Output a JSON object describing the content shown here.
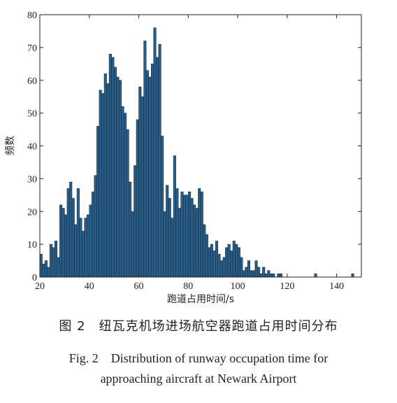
{
  "chart_data": {
    "type": "bar",
    "title": "",
    "xlabel": "跑道占用时间/s",
    "ylabel": "频数",
    "xlim": [
      20,
      150
    ],
    "ylim": [
      0,
      80
    ],
    "xticks": [
      20,
      40,
      60,
      80,
      100,
      120,
      140
    ],
    "yticks": [
      0,
      10,
      20,
      30,
      40,
      50,
      60,
      70,
      80
    ],
    "bar_color": "#2a5d86",
    "bin_width": 1,
    "x": [
      20,
      21,
      22,
      23,
      24,
      25,
      26,
      27,
      28,
      29,
      30,
      31,
      32,
      33,
      34,
      35,
      36,
      37,
      38,
      39,
      40,
      41,
      42,
      43,
      44,
      45,
      46,
      47,
      48,
      49,
      50,
      51,
      52,
      53,
      54,
      55,
      56,
      57,
      58,
      59,
      60,
      61,
      62,
      63,
      64,
      65,
      66,
      67,
      68,
      69,
      70,
      71,
      72,
      73,
      74,
      75,
      76,
      77,
      78,
      79,
      80,
      81,
      82,
      83,
      84,
      85,
      86,
      87,
      88,
      89,
      90,
      91,
      92,
      93,
      94,
      95,
      96,
      97,
      98,
      99,
      100,
      101,
      102,
      103,
      104,
      105,
      106,
      107,
      108,
      109,
      110,
      111,
      112,
      113,
      114,
      115,
      116,
      117,
      118,
      119,
      120,
      121,
      122,
      123,
      124,
      125,
      126,
      127,
      128,
      129,
      130,
      131,
      132,
      133,
      134,
      135,
      136,
      137,
      138,
      139,
      140,
      141,
      142,
      143,
      144,
      145,
      146
    ],
    "values": [
      7,
      4,
      5,
      3,
      10,
      9,
      11,
      6,
      22,
      21,
      19,
      27,
      29,
      24,
      16,
      27,
      18,
      14,
      18,
      19,
      22,
      26,
      31,
      46,
      57,
      56,
      62,
      59,
      68,
      67,
      64,
      61,
      60,
      52,
      50,
      45,
      29,
      20,
      34,
      48,
      58,
      55,
      72,
      63,
      61,
      65,
      76,
      67,
      71,
      43,
      20,
      28,
      24,
      18,
      37,
      27,
      21,
      26,
      25,
      25,
      26,
      24,
      22,
      21,
      27,
      26,
      16,
      13,
      9,
      10,
      8,
      11,
      7,
      5,
      6,
      9,
      10,
      8,
      11,
      10,
      9,
      6,
      2,
      3,
      5,
      2,
      2,
      5,
      3,
      1,
      3,
      1,
      2,
      1,
      1,
      0,
      1,
      1,
      0,
      0,
      0,
      0,
      0,
      0,
      0,
      0,
      0,
      0,
      0,
      0,
      0,
      1,
      0,
      0,
      0,
      0,
      0,
      0,
      0,
      0,
      0,
      0,
      0,
      0,
      0,
      0,
      1
    ]
  },
  "caption": {
    "zh": "图 2　纽瓦克机场进场航空器跑道占用时间分布",
    "en_line1": "Fig. 2　Distribution of runway occupation time for",
    "en_line2": "approaching aircraft at Newark Airport"
  }
}
